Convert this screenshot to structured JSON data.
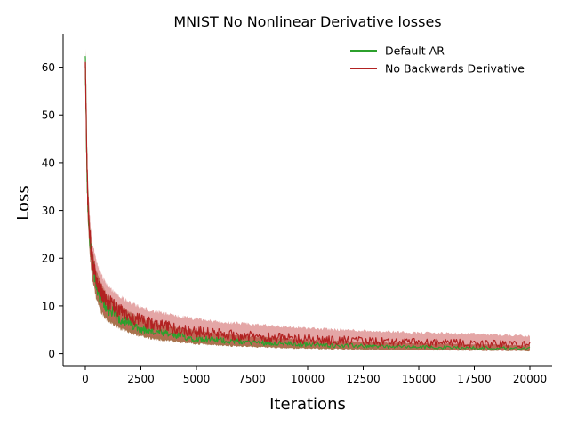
{
  "chart_data": {
    "type": "line",
    "title": "MNIST No Nonlinear Derivative losses",
    "xlabel": "Iterations",
    "ylabel": "Loss",
    "xlim": [
      -1000,
      21000
    ],
    "ylim": [
      -2.5,
      67
    ],
    "xticks": [
      0,
      2500,
      5000,
      7500,
      10000,
      12500,
      15000,
      17500,
      20000
    ],
    "yticks": [
      0,
      10,
      20,
      30,
      40,
      50,
      60
    ],
    "grid": false,
    "legend_position": "top-right",
    "x": [
      0,
      50,
      100,
      200,
      300,
      500,
      750,
      1000,
      1500,
      2000,
      2500,
      3000,
      4000,
      5000,
      6000,
      7500,
      10000,
      12500,
      15000,
      17500,
      20000
    ],
    "series": [
      {
        "name": "Default AR",
        "color": "#2ca02c",
        "band_color": "#8b4513",
        "mean": [
          62,
          45,
          33,
          24,
          19,
          14,
          11,
          9.5,
          7.5,
          6.2,
          5.3,
          4.6,
          3.8,
          3.2,
          2.8,
          2.4,
          1.9,
          1.6,
          1.4,
          1.2,
          1.1
        ],
        "upper": [
          63.5,
          48,
          36,
          27,
          22,
          17,
          14,
          12,
          10,
          8.5,
          7.3,
          6.5,
          5.4,
          4.7,
          4.1,
          3.5,
          2.8,
          2.4,
          2.1,
          1.9,
          1.7
        ],
        "lower": [
          59,
          40,
          29,
          21,
          16,
          11.5,
          8.5,
          7,
          5.5,
          4.5,
          3.8,
          3.2,
          2.6,
          2.1,
          1.8,
          1.5,
          1.1,
          0.9,
          0.8,
          0.7,
          0.6
        ]
      },
      {
        "name": "No Backwards Derivative",
        "color": "#b22222",
        "band_color": "#cd5c5c",
        "mean": [
          61,
          46,
          34,
          25,
          20,
          15.5,
          12.5,
          11,
          9,
          7.8,
          6.9,
          6.2,
          5.3,
          4.6,
          4.1,
          3.6,
          3,
          2.6,
          2.3,
          2.1,
          1.9
        ],
        "upper": [
          63,
          50,
          38,
          28.5,
          23.5,
          19,
          16,
          14,
          12,
          10.5,
          9.5,
          8.8,
          7.8,
          7.1,
          6.5,
          6,
          5.2,
          4.7,
          4.3,
          4,
          3.6
        ],
        "lower": [
          58,
          41,
          30,
          22,
          17,
          12.5,
          9.5,
          8,
          6.5,
          5.3,
          4.6,
          4,
          3.3,
          2.8,
          2.4,
          2.1,
          1.6,
          1.3,
          1.1,
          0.9,
          0.8
        ]
      }
    ]
  }
}
